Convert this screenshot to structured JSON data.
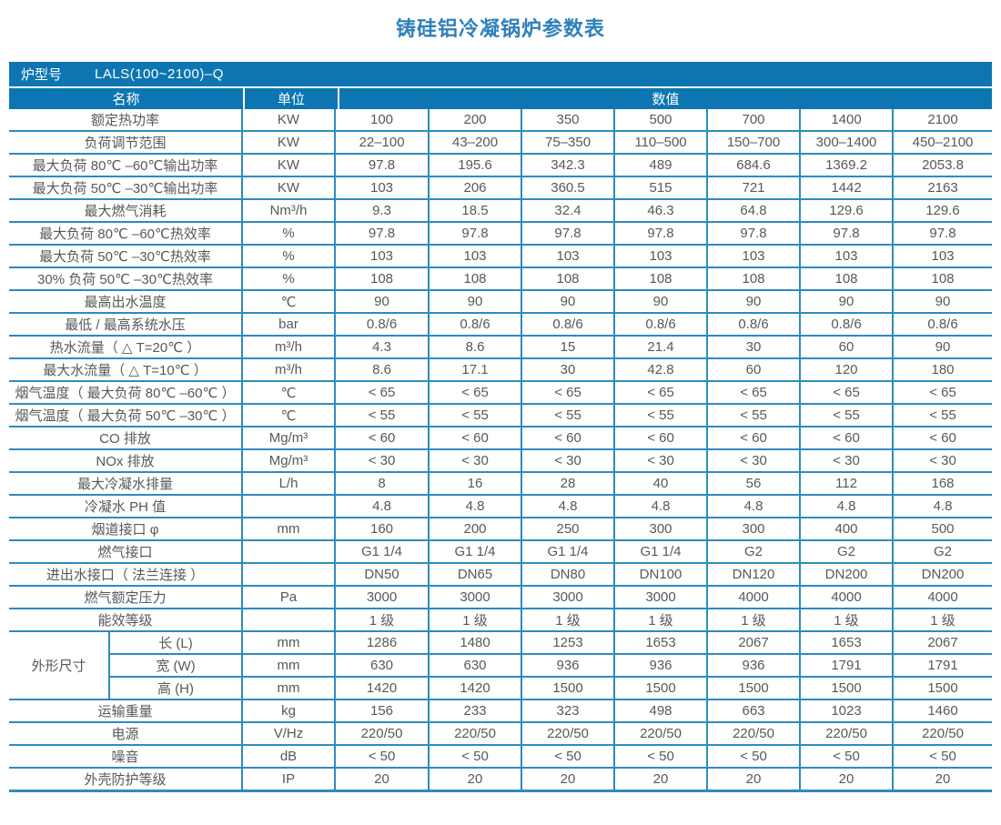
{
  "page": {
    "title": "铸硅铝冷凝锅炉参数表"
  },
  "colors": {
    "header_bg": "#0d76b2",
    "border_line": "#2e8ac3",
    "title_text": "#2e80bc",
    "body_text": "#57585c"
  },
  "table": {
    "model_label": "炉型号",
    "model_value": "LALS(100~2100)–Q",
    "columns": {
      "name": "名称",
      "unit": "单位",
      "value": "数值"
    },
    "rows": [
      {
        "name": "额定热功率",
        "unit": "KW",
        "values": [
          "100",
          "200",
          "350",
          "500",
          "700",
          "1400",
          "2100"
        ]
      },
      {
        "name": "负荷调节范围",
        "unit": "KW",
        "values": [
          "22–100",
          "43–200",
          "75–350",
          "110–500",
          "150–700",
          "300–1400",
          "450–2100"
        ]
      },
      {
        "name": "最大负荷 80℃ –60℃输出功率",
        "unit": "KW",
        "values": [
          "97.8",
          "195.6",
          "342.3",
          "489",
          "684.6",
          "1369.2",
          "2053.8"
        ]
      },
      {
        "name": "最大负荷 50℃ –30℃输出功率",
        "unit": "KW",
        "values": [
          "103",
          "206",
          "360.5",
          "515",
          "721",
          "1442",
          "2163"
        ]
      },
      {
        "name": "最大燃气消耗",
        "unit": "Nm³/h",
        "values": [
          "9.3",
          "18.5",
          "32.4",
          "46.3",
          "64.8",
          "129.6",
          "129.6"
        ]
      },
      {
        "name": "最大负荷 80℃ –60℃热效率",
        "unit": "%",
        "values": [
          "97.8",
          "97.8",
          "97.8",
          "97.8",
          "97.8",
          "97.8",
          "97.8"
        ]
      },
      {
        "name": "最大负荷 50℃ –30℃热效率",
        "unit": "%",
        "values": [
          "103",
          "103",
          "103",
          "103",
          "103",
          "103",
          "103"
        ]
      },
      {
        "name": "30% 负荷 50℃ –30℃热效率",
        "unit": "%",
        "values": [
          "108",
          "108",
          "108",
          "108",
          "108",
          "108",
          "108"
        ]
      },
      {
        "name": "最高出水温度",
        "unit": "℃",
        "values": [
          "90",
          "90",
          "90",
          "90",
          "90",
          "90",
          "90"
        ]
      },
      {
        "name": "最低 / 最高系统水压",
        "unit": "bar",
        "values": [
          "0.8/6",
          "0.8/6",
          "0.8/6",
          "0.8/6",
          "0.8/6",
          "0.8/6",
          "0.8/6"
        ]
      },
      {
        "name": "热水流量（ △ T=20℃ ）",
        "unit": "m³/h",
        "values": [
          "4.3",
          "8.6",
          "15",
          "21.4",
          "30",
          "60",
          "90"
        ]
      },
      {
        "name": "最大水流量（ △ T=10℃ ）",
        "unit": "m³/h",
        "values": [
          "8.6",
          "17.1",
          "30",
          "42.8",
          "60",
          "120",
          "180"
        ]
      },
      {
        "name": "烟气温度（ 最大负荷 80℃ –60℃ ）",
        "unit": "℃",
        "values": [
          "< 65",
          "< 65",
          "< 65",
          "< 65",
          "< 65",
          "< 65",
          "< 65"
        ]
      },
      {
        "name": "烟气温度（ 最大负荷 50℃ –30℃ ）",
        "unit": "℃",
        "values": [
          "< 55",
          "< 55",
          "< 55",
          "< 55",
          "< 55",
          "< 55",
          "< 55"
        ]
      },
      {
        "name": "CO 排放",
        "unit": "Mg/m³",
        "values": [
          "< 60",
          "< 60",
          "< 60",
          "< 60",
          "< 60",
          "< 60",
          "< 60"
        ]
      },
      {
        "name": "NOx 排放",
        "unit": "Mg/m³",
        "values": [
          "< 30",
          "< 30",
          "< 30",
          "< 30",
          "< 30",
          "< 30",
          "< 30"
        ]
      },
      {
        "name": "最大冷凝水排量",
        "unit": "L/h",
        "values": [
          "8",
          "16",
          "28",
          "40",
          "56",
          "112",
          "168"
        ]
      },
      {
        "name": "冷凝水 PH 值",
        "unit": "",
        "values": [
          "4.8",
          "4.8",
          "4.8",
          "4.8",
          "4.8",
          "4.8",
          "4.8"
        ]
      },
      {
        "name": "烟道接口 φ",
        "unit": "mm",
        "values": [
          "160",
          "200",
          "250",
          "300",
          "300",
          "400",
          "500"
        ]
      },
      {
        "name": "燃气接口",
        "unit": "",
        "values": [
          "G1 1/4",
          "G1 1/4",
          "G1 1/4",
          "G1 1/4",
          "G2",
          "G2",
          "G2"
        ]
      },
      {
        "name": "进出水接口（ 法兰连接 ）",
        "unit": "",
        "values": [
          "DN50",
          "DN65",
          "DN80",
          "DN100",
          "DN120",
          "DN200",
          "DN200"
        ]
      },
      {
        "name": "燃气额定压力",
        "unit": "Pa",
        "values": [
          "3000",
          "3000",
          "3000",
          "3000",
          "4000",
          "4000",
          "4000"
        ]
      },
      {
        "name": "能效等级",
        "unit": "",
        "values": [
          "1 级",
          "1 级",
          "1 级",
          "1 级",
          "1 级",
          "1 级",
          "1 级"
        ]
      },
      {
        "group": "外形尺寸",
        "name": "长 (L)",
        "unit": "mm",
        "values": [
          "1286",
          "1480",
          "1253",
          "1653",
          "2067",
          "1653",
          "2067"
        ]
      },
      {
        "in_group": true,
        "name": "宽 (W)",
        "unit": "mm",
        "values": [
          "630",
          "630",
          "936",
          "936",
          "936",
          "1791",
          "1791"
        ]
      },
      {
        "in_group": true,
        "name": "高 (H)",
        "unit": "mm",
        "values": [
          "1420",
          "1420",
          "1500",
          "1500",
          "1500",
          "1500",
          "1500"
        ]
      },
      {
        "name": "运输重量",
        "unit": "kg",
        "values": [
          "156",
          "233",
          "323",
          "498",
          "663",
          "1023",
          "1460"
        ]
      },
      {
        "name": "电源",
        "unit": "V/Hz",
        "values": [
          "220/50",
          "220/50",
          "220/50",
          "220/50",
          "220/50",
          "220/50",
          "220/50"
        ]
      },
      {
        "name": "噪音",
        "unit": "dB",
        "values": [
          "< 50",
          "< 50",
          "< 50",
          "< 50",
          "< 50",
          "< 50",
          "< 50"
        ]
      },
      {
        "name": "外壳防护等级",
        "unit": "IP",
        "values": [
          "20",
          "20",
          "20",
          "20",
          "20",
          "20",
          "20"
        ]
      }
    ]
  }
}
